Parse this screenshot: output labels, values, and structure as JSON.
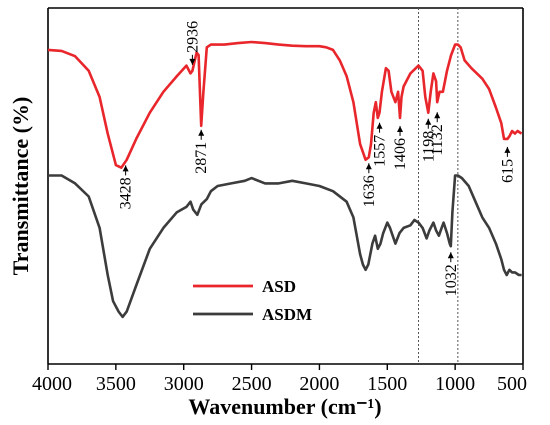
{
  "chart_data": {
    "type": "line",
    "xlabel": "Wavenumber (cm⁻¹)",
    "ylabel": "Transmittance (%)",
    "xlim": [
      4000,
      500
    ],
    "x_ticks": [
      4000,
      3500,
      3000,
      2500,
      2000,
      1500,
      1000,
      500
    ],
    "y_ticks": [],
    "reference_lines_x": [
      1270,
      980
    ],
    "legend_position": "center-left",
    "series": [
      {
        "name": "ASD",
        "color": "#e8262b",
        "points": [
          [
            4000,
            88
          ],
          [
            3900,
            87.8
          ],
          [
            3800,
            86.8
          ],
          [
            3700,
            84
          ],
          [
            3620,
            79
          ],
          [
            3560,
            72
          ],
          [
            3500,
            66
          ],
          [
            3460,
            65.5
          ],
          [
            3420,
            67
          ],
          [
            3350,
            71
          ],
          [
            3250,
            76
          ],
          [
            3150,
            80
          ],
          [
            3050,
            83
          ],
          [
            2980,
            85
          ],
          [
            2950,
            83.5
          ],
          [
            2936,
            84
          ],
          [
            2905,
            87.5
          ],
          [
            2890,
            87
          ],
          [
            2871,
            73.5
          ],
          [
            2855,
            80
          ],
          [
            2830,
            88.5
          ],
          [
            2800,
            89
          ],
          [
            2700,
            89
          ],
          [
            2600,
            89.3
          ],
          [
            2500,
            89.5
          ],
          [
            2400,
            89.3
          ],
          [
            2300,
            89
          ],
          [
            2200,
            88.8
          ],
          [
            2100,
            88.7
          ],
          [
            2000,
            88.7
          ],
          [
            1950,
            88.5
          ],
          [
            1900,
            88
          ],
          [
            1850,
            86
          ],
          [
            1800,
            83
          ],
          [
            1750,
            78
          ],
          [
            1700,
            70
          ],
          [
            1660,
            67
          ],
          [
            1636,
            67.5
          ],
          [
            1620,
            70
          ],
          [
            1600,
            76
          ],
          [
            1585,
            78
          ],
          [
            1570,
            75
          ],
          [
            1557,
            76
          ],
          [
            1540,
            80
          ],
          [
            1510,
            84.5
          ],
          [
            1490,
            84
          ],
          [
            1470,
            80
          ],
          [
            1440,
            78
          ],
          [
            1420,
            80
          ],
          [
            1406,
            75
          ],
          [
            1395,
            79
          ],
          [
            1380,
            81
          ],
          [
            1330,
            83.5
          ],
          [
            1270,
            85
          ],
          [
            1240,
            84
          ],
          [
            1220,
            79
          ],
          [
            1198,
            76
          ],
          [
            1180,
            80
          ],
          [
            1160,
            83.5
          ],
          [
            1140,
            82
          ],
          [
            1132,
            78
          ],
          [
            1115,
            80
          ],
          [
            1090,
            80
          ],
          [
            1060,
            84
          ],
          [
            1030,
            87
          ],
          [
            1000,
            89
          ],
          [
            980,
            89
          ],
          [
            960,
            88.5
          ],
          [
            930,
            86
          ],
          [
            880,
            84.5
          ],
          [
            800,
            82.5
          ],
          [
            750,
            80.5
          ],
          [
            700,
            77
          ],
          [
            660,
            74
          ],
          [
            640,
            71
          ],
          [
            615,
            71
          ],
          [
            600,
            71.5
          ],
          [
            580,
            72.5
          ],
          [
            560,
            72
          ],
          [
            540,
            72.5
          ],
          [
            510,
            72
          ]
        ]
      },
      {
        "name": "ASDM",
        "color": "#3c3c3c",
        "points": [
          [
            4000,
            64
          ],
          [
            3900,
            64
          ],
          [
            3800,
            62.5
          ],
          [
            3700,
            60
          ],
          [
            3620,
            54
          ],
          [
            3560,
            45
          ],
          [
            3520,
            40
          ],
          [
            3480,
            38
          ],
          [
            3450,
            37
          ],
          [
            3420,
            38
          ],
          [
            3350,
            43
          ],
          [
            3250,
            50
          ],
          [
            3150,
            54
          ],
          [
            3050,
            57
          ],
          [
            2980,
            58
          ],
          [
            2950,
            59
          ],
          [
            2930,
            57.5
          ],
          [
            2900,
            56.5
          ],
          [
            2870,
            58.5
          ],
          [
            2830,
            59.5
          ],
          [
            2800,
            61
          ],
          [
            2750,
            62
          ],
          [
            2650,
            62.5
          ],
          [
            2550,
            63
          ],
          [
            2500,
            63.5
          ],
          [
            2400,
            62.5
          ],
          [
            2300,
            62.5
          ],
          [
            2200,
            63
          ],
          [
            2100,
            62.5
          ],
          [
            2000,
            62
          ],
          [
            1900,
            61
          ],
          [
            1800,
            59
          ],
          [
            1750,
            56
          ],
          [
            1700,
            49
          ],
          [
            1680,
            47
          ],
          [
            1660,
            46
          ],
          [
            1640,
            47
          ],
          [
            1610,
            51
          ],
          [
            1590,
            52.5
          ],
          [
            1570,
            50
          ],
          [
            1550,
            51
          ],
          [
            1530,
            53
          ],
          [
            1500,
            55
          ],
          [
            1480,
            54
          ],
          [
            1440,
            51
          ],
          [
            1410,
            53
          ],
          [
            1380,
            54
          ],
          [
            1330,
            54.5
          ],
          [
            1300,
            55.5
          ],
          [
            1270,
            55
          ],
          [
            1240,
            54
          ],
          [
            1210,
            52
          ],
          [
            1190,
            53.5
          ],
          [
            1160,
            55
          ],
          [
            1140,
            53.5
          ],
          [
            1120,
            52.5
          ],
          [
            1100,
            54
          ],
          [
            1085,
            55
          ],
          [
            1060,
            53
          ],
          [
            1040,
            51
          ],
          [
            1032,
            50.5
          ],
          [
            1020,
            57
          ],
          [
            1000,
            64
          ],
          [
            980,
            64
          ],
          [
            950,
            63.5
          ],
          [
            900,
            62
          ],
          [
            850,
            59
          ],
          [
            800,
            56
          ],
          [
            750,
            54
          ],
          [
            700,
            51
          ],
          [
            660,
            48
          ],
          [
            640,
            46
          ],
          [
            620,
            45
          ],
          [
            600,
            46
          ],
          [
            580,
            45.5
          ],
          [
            560,
            45.5
          ],
          [
            530,
            45
          ],
          [
            510,
            45
          ]
        ]
      }
    ],
    "annotations": [
      {
        "label": "3428",
        "x": 3428
      },
      {
        "label": "2936",
        "x": 2936
      },
      {
        "label": "2871",
        "x": 2871
      },
      {
        "label": "1636",
        "x": 1636
      },
      {
        "label": "1557",
        "x": 1557
      },
      {
        "label": "1406",
        "x": 1406
      },
      {
        "label": "1198",
        "x": 1198
      },
      {
        "label": "1132",
        "x": 1132
      },
      {
        "label": "615",
        "x": 615
      },
      {
        "label": "1032",
        "x": 1032
      }
    ]
  }
}
